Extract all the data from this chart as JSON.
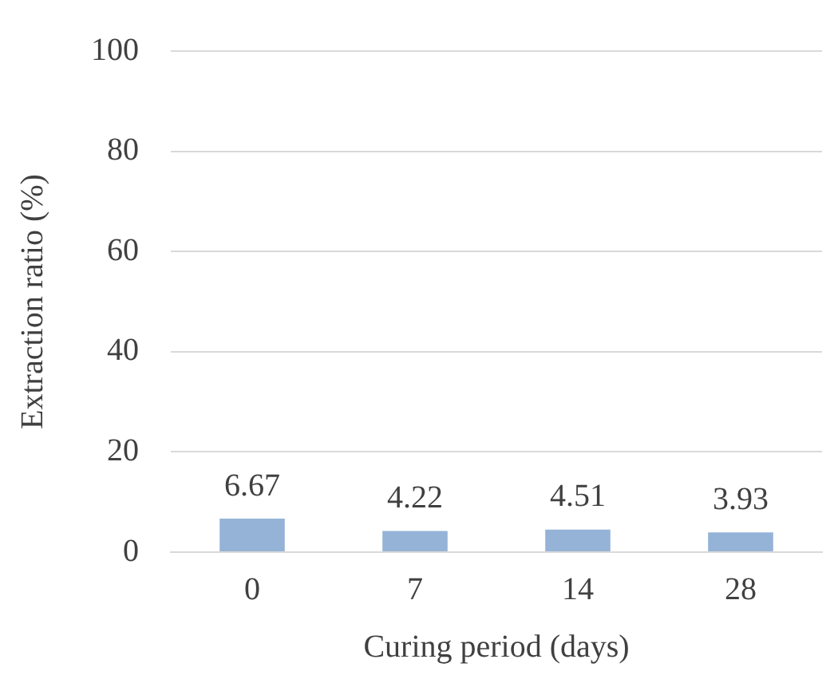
{
  "chart_data": {
    "type": "bar",
    "xlabel": "Curing period (days)",
    "ylabel": "Extraction ratio (%)",
    "categories": [
      "0",
      "7",
      "14",
      "28"
    ],
    "values": [
      6.67,
      4.22,
      4.51,
      3.93
    ],
    "color": "#95b3d7",
    "ylim": [
      0,
      100
    ],
    "yticks": [
      0,
      20,
      40,
      60,
      80,
      100
    ],
    "grid": "y",
    "data_labels": true
  }
}
